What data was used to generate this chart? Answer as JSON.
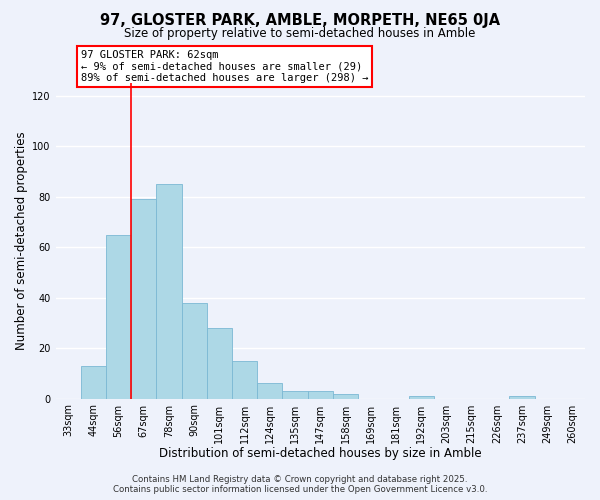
{
  "title": "97, GLOSTER PARK, AMBLE, MORPETH, NE65 0JA",
  "subtitle": "Size of property relative to semi-detached houses in Amble",
  "xlabel": "Distribution of semi-detached houses by size in Amble",
  "ylabel": "Number of semi-detached properties",
  "bar_labels": [
    "33sqm",
    "44sqm",
    "56sqm",
    "67sqm",
    "78sqm",
    "90sqm",
    "101sqm",
    "112sqm",
    "124sqm",
    "135sqm",
    "147sqm",
    "158sqm",
    "169sqm",
    "181sqm",
    "192sqm",
    "203sqm",
    "215sqm",
    "226sqm",
    "237sqm",
    "249sqm",
    "260sqm"
  ],
  "bar_values": [
    0,
    13,
    65,
    79,
    85,
    38,
    28,
    15,
    6,
    3,
    3,
    2,
    0,
    0,
    1,
    0,
    0,
    0,
    1,
    0,
    0
  ],
  "bar_color": "#add8e6",
  "bar_edgecolor": "#7bb8d4",
  "vline_x": 2.5,
  "vline_color": "red",
  "ylim": [
    0,
    125
  ],
  "yticks": [
    0,
    20,
    40,
    60,
    80,
    100,
    120
  ],
  "annotation_title": "97 GLOSTER PARK: 62sqm",
  "annotation_line1": "← 9% of semi-detached houses are smaller (29)",
  "annotation_line2": "89% of semi-detached houses are larger (298) →",
  "footer1": "Contains HM Land Registry data © Crown copyright and database right 2025.",
  "footer2": "Contains public sector information licensed under the Open Government Licence v3.0.",
  "background_color": "#eef2fb",
  "grid_color": "#ffffff",
  "title_fontsize": 10.5,
  "subtitle_fontsize": 8.5,
  "axis_label_fontsize": 8.5,
  "tick_fontsize": 7,
  "annotation_fontsize": 7.5,
  "footer_fontsize": 6.2
}
